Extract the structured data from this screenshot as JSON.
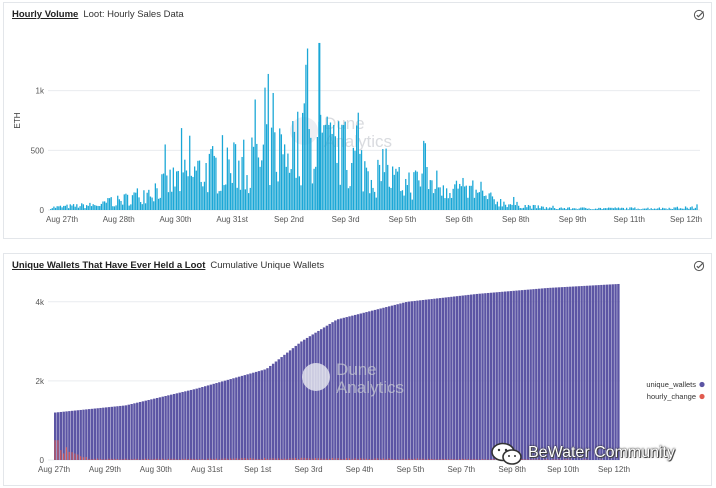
{
  "panel1": {
    "title": "Hourly Volume",
    "subtitle": "Loot: Hourly Sales Data"
  },
  "panel2": {
    "title": "Unique Wallets That Have Ever Held a Loot",
    "subtitle": "Cumulative Unique Wallets"
  },
  "watermark": {
    "brand_line1": "Dune",
    "brand_line2": "Analytics"
  },
  "overlay": {
    "community_label": "BeWater Community"
  },
  "colors": {
    "volume_bar": "#1aa7d6",
    "wallets_bar": "#5c55a4",
    "hourly_change": "#e15b4f",
    "grid": "#e9ecef",
    "axis_text": "#555555"
  },
  "chart_data": [
    {
      "type": "bar",
      "title": "Hourly Volume",
      "subtitle": "Loot: Hourly Sales Data",
      "ylabel": "ETH",
      "xlabel": "",
      "ylim": [
        0,
        1500
      ],
      "yticks": [
        0,
        500,
        1000
      ],
      "ytick_labels": [
        "0",
        "500",
        "1k"
      ],
      "xtick_labels": [
        "Aug 27th",
        "Aug 28th",
        "Aug 30th",
        "Aug 31st",
        "Sep 2nd",
        "Sep 3rd",
        "Sep 5th",
        "Sep 6th",
        "Sep 8th",
        "Sep 9th",
        "Sep 11th",
        "Sep 12th"
      ],
      "grid": true,
      "x_start": "2021-08-27",
      "x_end": "2021-09-12",
      "peaks": [
        {
          "date": "2021-08-28",
          "value": 110
        },
        {
          "date": "2021-08-31",
          "value": 900
        },
        {
          "date": "2021-09-01",
          "value": 1050
        },
        {
          "date": "2021-09-02",
          "value": 1020
        },
        {
          "date": "2021-09-02",
          "value": 1400
        },
        {
          "date": "2021-09-03",
          "value": 850
        },
        {
          "date": "2021-09-04",
          "value": 580
        },
        {
          "date": "2021-09-05",
          "value": 600
        },
        {
          "date": "2021-09-06",
          "value": 200
        },
        {
          "date": "2021-09-12",
          "value": 50
        }
      ]
    },
    {
      "type": "bar",
      "title": "Unique Wallets That Have Ever Held a Loot",
      "subtitle": "Cumulative Unique Wallets",
      "xlabel": "",
      "ylabel": "",
      "ylim": [
        0,
        4500
      ],
      "yticks": [
        0,
        2000,
        4000
      ],
      "ytick_labels": [
        "0",
        "2k",
        "4k"
      ],
      "xtick_labels": [
        "Aug 27th",
        "Aug 29th",
        "Aug 30th",
        "Aug 31st",
        "Sep 1st",
        "Sep 3rd",
        "Sep 4th",
        "Sep 5th",
        "Sep 7th",
        "Sep 8th",
        "Sep 10th",
        "Sep 12th"
      ],
      "grid": true,
      "legend_position": "right",
      "series": [
        {
          "name": "unique_wallets",
          "points": [
            {
              "date": "2021-08-27",
              "value": 1200
            },
            {
              "date": "2021-08-29",
              "value": 1380
            },
            {
              "date": "2021-08-31",
              "value": 1800
            },
            {
              "date": "2021-09-02",
              "value": 2300
            },
            {
              "date": "2021-09-03",
              "value": 3000
            },
            {
              "date": "2021-09-04",
              "value": 3550
            },
            {
              "date": "2021-09-06",
              "value": 4000
            },
            {
              "date": "2021-09-08",
              "value": 4200
            },
            {
              "date": "2021-09-10",
              "value": 4350
            },
            {
              "date": "2021-09-12",
              "value": 4450
            }
          ]
        },
        {
          "name": "hourly_change",
          "points": [
            {
              "date": "2021-08-27",
              "value": 500
            },
            {
              "date": "2021-08-28",
              "value": 40
            },
            {
              "date": "2021-08-31",
              "value": 30
            },
            {
              "date": "2021-09-02",
              "value": 60
            },
            {
              "date": "2021-09-12",
              "value": 10
            }
          ]
        }
      ]
    }
  ]
}
